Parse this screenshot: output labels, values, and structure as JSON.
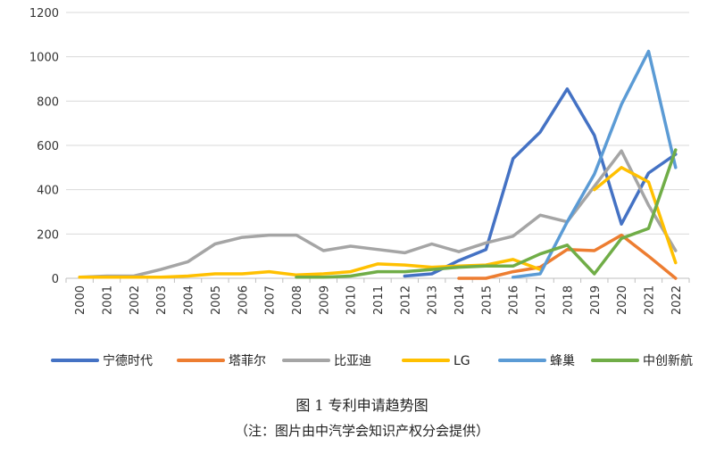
{
  "caption": {
    "title": "图 1  专利申请趋势图",
    "note": "（注：图片由中汽学会知识产权分会提供）"
  },
  "chart_data": {
    "type": "line",
    "title": "",
    "xlabel": "",
    "ylabel": "",
    "ylim": [
      0,
      1200
    ],
    "yticks": [
      0,
      200,
      400,
      600,
      800,
      1000,
      1200
    ],
    "grid": true,
    "legend_position": "bottom",
    "x": [
      "2000",
      "2001",
      "2002",
      "2003",
      "2004",
      "2005",
      "2006",
      "2007",
      "2008",
      "2009",
      "2010",
      "2011",
      "2012",
      "2013",
      "2014",
      "2015",
      "2016",
      "2017",
      "2018",
      "2019",
      "2020",
      "2021",
      "2022"
    ],
    "series": [
      {
        "name": "宁德时代",
        "color": "#4472C4",
        "values": [
          null,
          null,
          null,
          null,
          null,
          null,
          null,
          null,
          null,
          null,
          null,
          null,
          10,
          20,
          80,
          130,
          540,
          660,
          855,
          645,
          245,
          475,
          560
        ]
      },
      {
        "name": "塔菲尔",
        "color": "#ED7D31",
        "values": [
          null,
          null,
          null,
          null,
          null,
          null,
          null,
          null,
          null,
          null,
          null,
          null,
          null,
          null,
          0,
          0,
          30,
          50,
          130,
          125,
          195,
          100,
          0
        ]
      },
      {
        "name": "比亚迪",
        "color": "#A5A5A5",
        "values": [
          5,
          10,
          10,
          40,
          75,
          155,
          185,
          195,
          195,
          125,
          145,
          130,
          115,
          155,
          120,
          160,
          190,
          285,
          255,
          415,
          575,
          330,
          125
        ]
      },
      {
        "name": "LG",
        "color": "#FFC000",
        "values": [
          5,
          5,
          5,
          5,
          10,
          20,
          20,
          30,
          15,
          20,
          30,
          65,
          60,
          50,
          55,
          60,
          85,
          40,
          null,
          400,
          500,
          435,
          70
        ]
      },
      {
        "name": "蜂巢",
        "color": "#5B9BD5",
        "values": [
          null,
          null,
          null,
          null,
          null,
          null,
          null,
          null,
          null,
          null,
          null,
          null,
          null,
          null,
          null,
          null,
          5,
          20,
          255,
          470,
          785,
          1025,
          500
        ]
      },
      {
        "name": "中创新航",
        "color": "#70AD47",
        "values": [
          null,
          null,
          null,
          null,
          null,
          null,
          null,
          null,
          5,
          5,
          10,
          30,
          30,
          40,
          50,
          55,
          55,
          110,
          150,
          20,
          180,
          225,
          580
        ]
      }
    ]
  }
}
